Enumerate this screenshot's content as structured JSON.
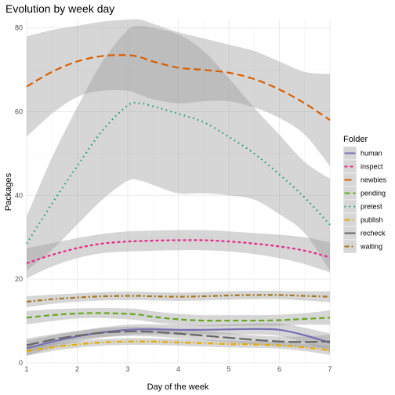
{
  "chart_data": {
    "type": "line",
    "title": "Evolution by week day",
    "xlabel": "Day of the week",
    "ylabel": "Packages",
    "xlim": [
      1,
      7
    ],
    "ylim": [
      0,
      82
    ],
    "x_ticks": [
      1,
      2,
      3,
      4,
      5,
      6,
      7
    ],
    "y_ticks": [
      0,
      20,
      40,
      60,
      80
    ],
    "grid": true,
    "legend_title": "Folder",
    "legend_position": "right",
    "x": [
      1,
      1.5,
      2,
      2.5,
      3,
      3.25,
      3.5,
      4,
      4.5,
      5,
      5.5,
      6,
      6.5,
      7
    ],
    "series": [
      {
        "name": "human",
        "color": "#7570b3",
        "dash": "solid",
        "values": [
          3.5,
          5.0,
          6.3,
          7.3,
          7.9,
          8.0,
          8.0,
          7.9,
          7.9,
          8.0,
          8.1,
          7.9,
          6.6,
          4.8
        ],
        "upper": [
          5.3,
          6.5,
          7.6,
          8.5,
          9.1,
          9.2,
          9.2,
          9.1,
          9.0,
          9.2,
          9.4,
          9.4,
          8.4,
          7.0
        ],
        "lower": [
          1.7,
          3.5,
          5.0,
          6.1,
          6.7,
          6.8,
          6.8,
          6.7,
          6.8,
          6.8,
          6.8,
          6.4,
          4.8,
          2.6
        ]
      },
      {
        "name": "inspect",
        "color": "#e7298a",
        "dash": "4,3",
        "values": [
          23.8,
          25.8,
          27.4,
          28.5,
          29.0,
          29.1,
          29.2,
          29.3,
          29.3,
          29.0,
          28.5,
          27.8,
          26.8,
          25.2
        ],
        "upper": [
          27.4,
          28.6,
          29.8,
          30.8,
          31.4,
          31.5,
          31.6,
          31.7,
          31.7,
          31.4,
          31.0,
          30.6,
          30.0,
          28.8
        ],
        "lower": [
          20.2,
          23.0,
          25.0,
          26.2,
          26.6,
          26.7,
          26.8,
          26.9,
          26.9,
          26.6,
          26.0,
          25.0,
          23.6,
          21.6
        ]
      },
      {
        "name": "newbies",
        "color": "#d95f02",
        "dash": "9,5",
        "values": [
          66.0,
          69.5,
          72.0,
          73.3,
          73.5,
          73.0,
          72.0,
          70.5,
          70.0,
          69.3,
          67.8,
          65.3,
          62.0,
          58.0
        ],
        "upper": [
          78.0,
          79.5,
          80.5,
          81.5,
          82.0,
          82.0,
          81.0,
          79.0,
          77.5,
          76.0,
          74.5,
          72.0,
          69.5,
          69.0
        ],
        "lower": [
          54.0,
          59.5,
          63.5,
          65.0,
          65.0,
          64.0,
          63.0,
          62.0,
          62.5,
          62.5,
          61.0,
          58.5,
          54.5,
          47.0
        ]
      },
      {
        "name": "pending",
        "color": "#66a61e",
        "dash": "7,4",
        "values": [
          10.8,
          11.4,
          11.8,
          11.9,
          11.7,
          11.5,
          11.0,
          10.4,
          10.1,
          10.1,
          10.1,
          10.2,
          10.5,
          10.8
        ],
        "upper": [
          12.4,
          12.8,
          13.0,
          13.1,
          13.0,
          12.8,
          12.3,
          11.7,
          11.4,
          11.4,
          11.4,
          11.5,
          11.9,
          12.5
        ],
        "lower": [
          9.2,
          10.0,
          10.6,
          10.7,
          10.4,
          10.2,
          9.7,
          9.1,
          8.8,
          8.8,
          8.8,
          8.9,
          9.1,
          9.1
        ]
      },
      {
        "name": "pretest",
        "color": "#1b9e77",
        "dash": "1.5,4.5",
        "values": [
          28.5,
          38.0,
          47.0,
          55.5,
          61.5,
          62.0,
          61.3,
          59.5,
          57.5,
          54.0,
          50.0,
          45.0,
          39.5,
          33.0
        ],
        "upper": [
          35.0,
          49.0,
          61.0,
          72.0,
          79.5,
          80.5,
          80.0,
          78.5,
          74.5,
          68.0,
          61.0,
          54.5,
          48.0,
          44.0
        ],
        "lower": [
          22.0,
          27.0,
          33.0,
          39.0,
          43.5,
          43.5,
          42.5,
          40.5,
          40.5,
          40.0,
          39.0,
          35.5,
          31.0,
          22.0
        ]
      },
      {
        "name": "publish",
        "color": "#e6ab02",
        "dash": "7,3,1.5,3",
        "values": [
          2.8,
          3.7,
          4.4,
          4.9,
          5.1,
          5.1,
          5.1,
          4.9,
          4.7,
          4.5,
          4.4,
          4.2,
          3.7,
          3.0
        ],
        "upper": [
          3.9,
          4.6,
          5.2,
          5.7,
          5.9,
          5.9,
          5.9,
          5.7,
          5.5,
          5.3,
          5.2,
          5.0,
          4.6,
          4.1
        ],
        "lower": [
          1.7,
          2.8,
          3.6,
          4.1,
          4.3,
          4.3,
          4.3,
          4.1,
          3.9,
          3.7,
          3.6,
          3.4,
          2.8,
          1.9
        ]
      },
      {
        "name": "recheck",
        "color": "#666666",
        "dash": "16,5",
        "values": [
          4.2,
          5.5,
          6.5,
          7.2,
          7.5,
          7.5,
          7.4,
          7.0,
          6.5,
          6.0,
          5.5,
          5.1,
          5.0,
          5.1
        ],
        "upper": [
          5.8,
          6.8,
          7.6,
          8.3,
          8.6,
          8.6,
          8.5,
          8.1,
          7.6,
          7.1,
          6.6,
          6.3,
          6.3,
          6.7
        ],
        "lower": [
          2.6,
          4.2,
          5.4,
          6.1,
          6.4,
          6.4,
          6.3,
          5.9,
          5.4,
          4.9,
          4.4,
          3.9,
          3.7,
          3.5
        ]
      },
      {
        "name": "waiting",
        "color": "#a6761d",
        "dash": "6,3,2,3",
        "values": [
          14.6,
          15.2,
          15.6,
          15.9,
          16.0,
          16.0,
          15.9,
          15.8,
          15.9,
          16.1,
          16.2,
          16.2,
          16.0,
          15.8
        ],
        "upper": [
          15.9,
          16.3,
          16.6,
          16.9,
          17.0,
          17.0,
          16.9,
          16.8,
          16.9,
          17.1,
          17.2,
          17.2,
          17.1,
          17.1
        ],
        "lower": [
          13.3,
          14.1,
          14.6,
          14.9,
          15.0,
          15.0,
          14.9,
          14.8,
          14.9,
          15.1,
          15.2,
          15.2,
          14.9,
          14.5
        ]
      }
    ]
  }
}
